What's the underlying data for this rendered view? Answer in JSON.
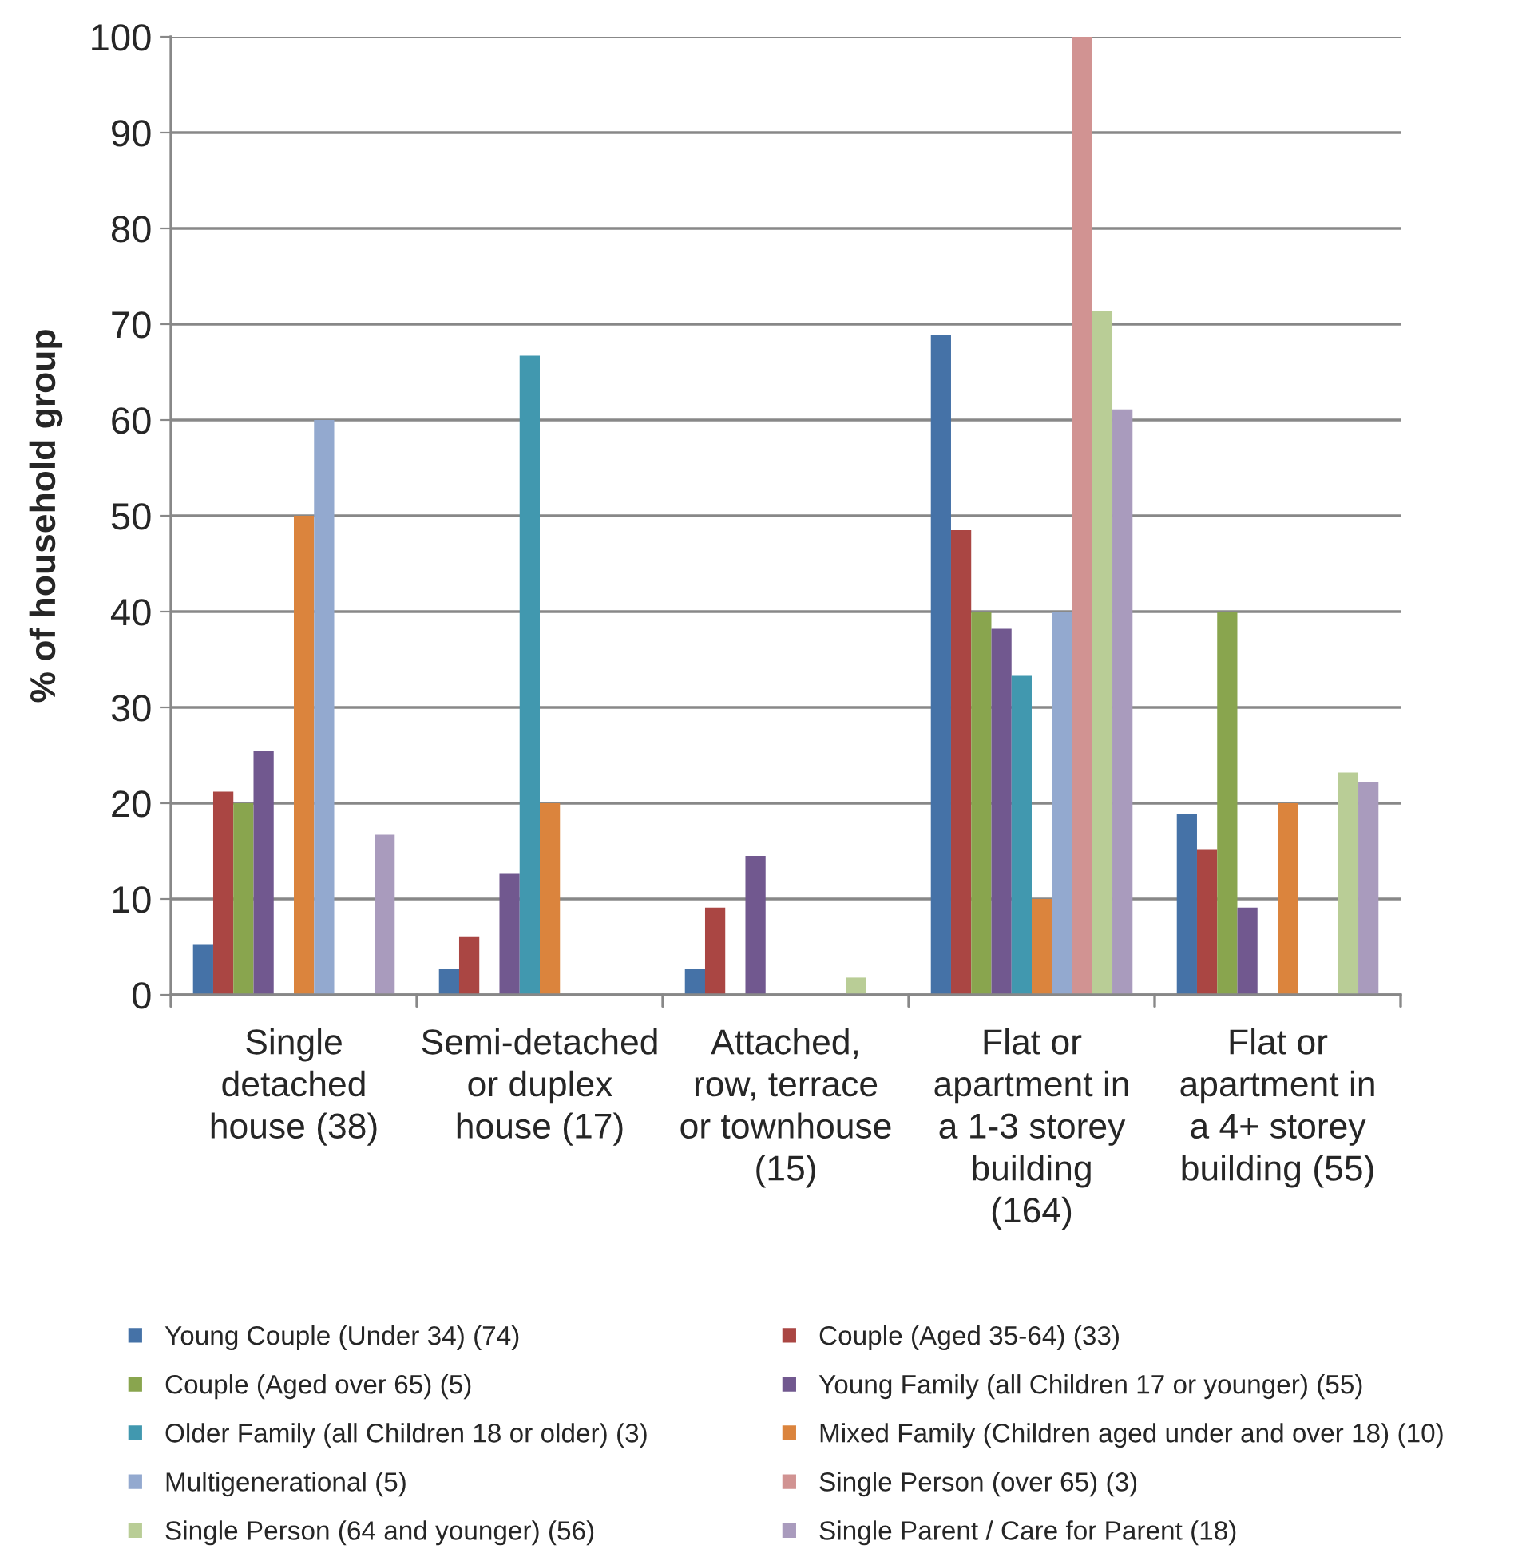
{
  "chart_data": {
    "type": "bar",
    "ylabel": "% of household group",
    "categories": [
      "Single detached house (38)",
      "Semi-detached or duplex house (17)",
      "Attached, row, terrace or townhouse (15)",
      "Flat or apartment in a 1-3 storey building (164)",
      "Flat or apartment in a 4+ storey building (55)"
    ],
    "series": [
      {
        "name": "Young Couple (Under 34) (74)",
        "color": "#4572a7",
        "values": [
          5.3,
          2.7,
          2.7,
          68.9,
          18.9
        ]
      },
      {
        "name": "Couple (Aged 35-64) (33)",
        "color": "#aa4643",
        "values": [
          21.2,
          6.1,
          9.1,
          48.5,
          15.2
        ]
      },
      {
        "name": "Couple (Aged over 65) (5)",
        "color": "#89a54e",
        "values": [
          20,
          0,
          0,
          40,
          40
        ]
      },
      {
        "name": "Young Family (all Children 17 or younger) (55)",
        "color": "#71588f",
        "values": [
          25.5,
          12.7,
          14.5,
          38.2,
          9.1
        ]
      },
      {
        "name": "Older Family (all Children 18 or older) (3)",
        "color": "#4198af",
        "values": [
          0,
          66.7,
          0,
          33.3,
          0
        ]
      },
      {
        "name": "Mixed Family (Children aged under and over 18) (10)",
        "color": "#db843d",
        "values": [
          50,
          20,
          0,
          10,
          20
        ]
      },
      {
        "name": "Multigenerational (5)",
        "color": "#93a9cf",
        "values": [
          60,
          0,
          0,
          40,
          0
        ]
      },
      {
        "name": "Single Person (over 65) (3)",
        "color": "#d19392",
        "values": [
          0,
          0,
          0,
          100,
          0
        ]
      },
      {
        "name": "Single Person (64 and younger) (56)",
        "color": "#b9cd96",
        "values": [
          0,
          0,
          1.8,
          71.4,
          23.2
        ]
      },
      {
        "name": "Single Parent / Care for Parent (18)",
        "color": "#a99bbd",
        "values": [
          16.7,
          0,
          0,
          61.1,
          22.2
        ]
      }
    ],
    "ylim": [
      0,
      100
    ],
    "yticks": [
      0,
      10,
      20,
      30,
      40,
      50,
      60,
      70,
      80,
      90,
      100
    ],
    "grid": "y",
    "legend": "bottom"
  }
}
